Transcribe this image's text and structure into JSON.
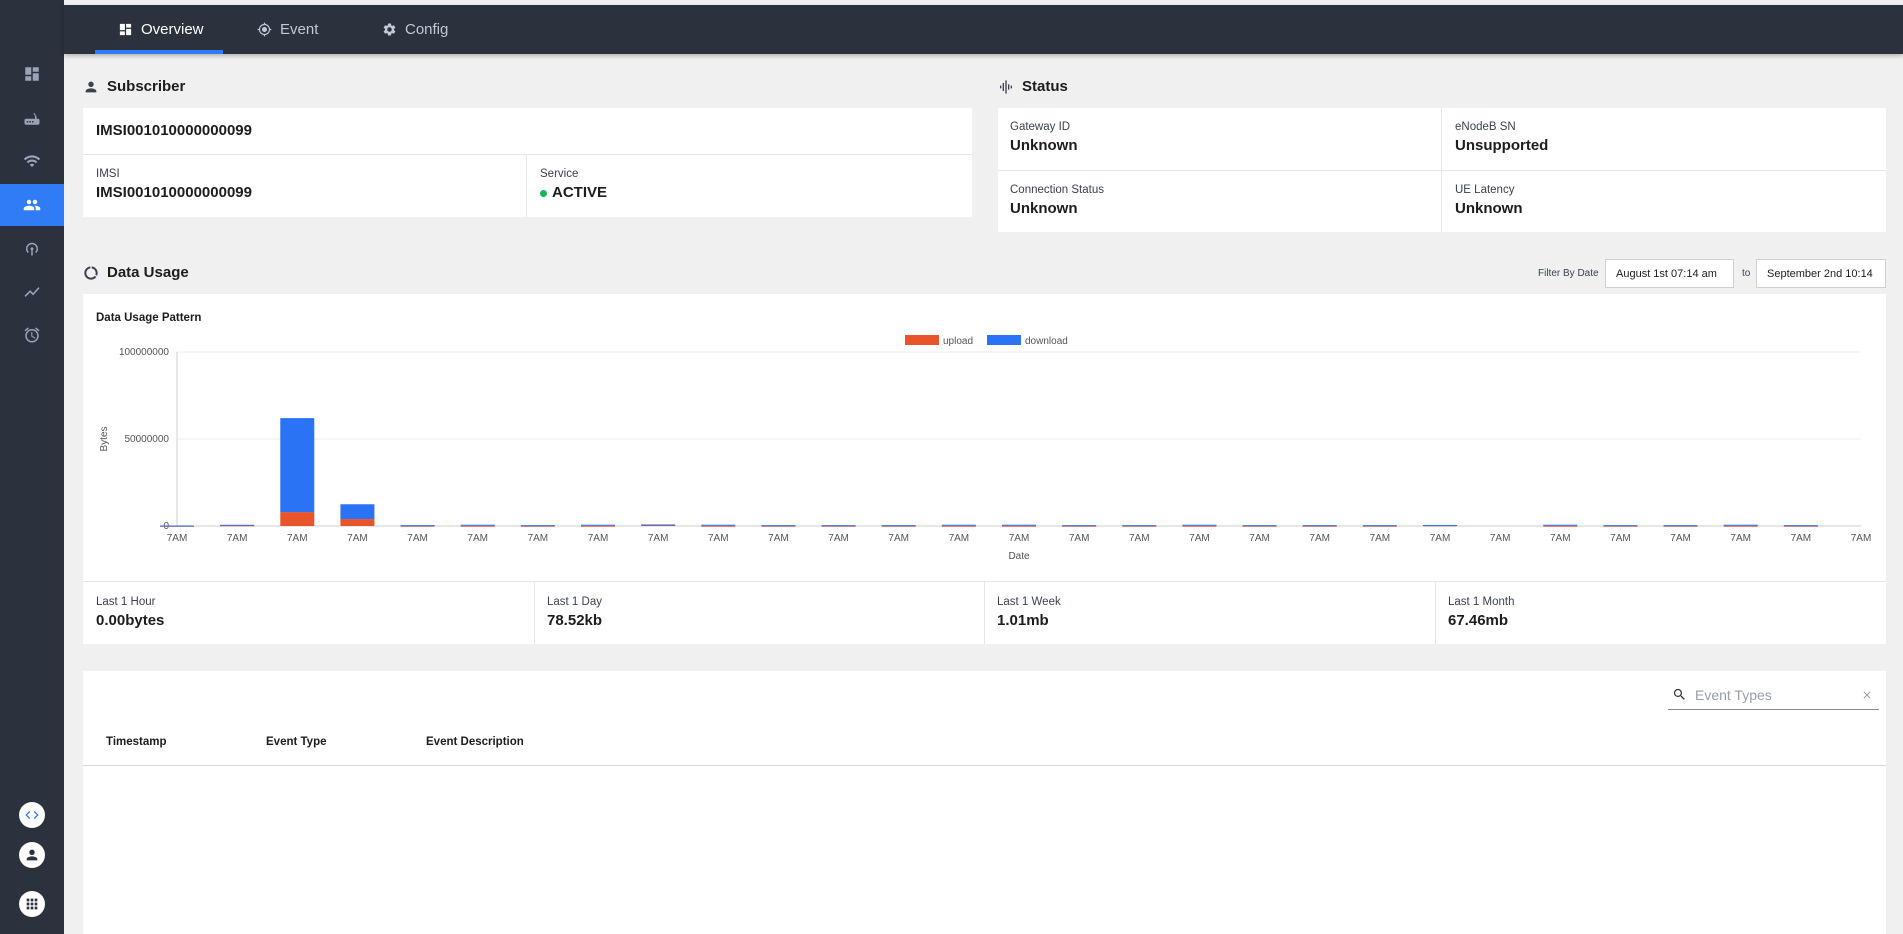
{
  "tabs": [
    {
      "label": "Overview",
      "icon": "dashboard-icon",
      "active": true
    },
    {
      "label": "Event",
      "icon": "gps-target-icon",
      "active": false
    },
    {
      "label": "Config",
      "icon": "gear-icon",
      "active": false
    }
  ],
  "subscriber": {
    "heading": "Subscriber",
    "id": "IMSI001010000000099",
    "imsi_label": "IMSI",
    "imsi_value": "IMSI001010000000099",
    "service_label": "Service",
    "service_value": "ACTIVE",
    "service_color": "#1cb45a"
  },
  "status": {
    "heading": "Status",
    "fields": [
      {
        "label": "Gateway ID",
        "value": "Unknown"
      },
      {
        "label": "eNodeB SN",
        "value": "Unsupported"
      },
      {
        "label": "Connection Status",
        "value": "Unknown"
      },
      {
        "label": "UE Latency",
        "value": "Unknown"
      }
    ]
  },
  "data_usage": {
    "heading": "Data Usage",
    "filter_label": "Filter By Date",
    "from_date": "August 1st 07:14 am",
    "to_label": "to",
    "to_date": "September 2nd 10:14"
  },
  "kpis": [
    {
      "label": "Last 1 Hour",
      "value": "0.00bytes"
    },
    {
      "label": "Last 1 Day",
      "value": "78.52kb"
    },
    {
      "label": "Last 1 Week",
      "value": "1.01mb"
    },
    {
      "label": "Last 1 Month",
      "value": "67.46mb"
    }
  ],
  "events": {
    "search_placeholder": "Event Types",
    "columns": [
      "Timestamp",
      "Event Type",
      "Event Description"
    ]
  },
  "colors": {
    "accent": "#2f7cf6",
    "nav_bg": "#2b313d",
    "upload": "#e8552b",
    "download": "#2a73f5"
  },
  "chart_data": {
    "type": "bar",
    "stacked": true,
    "title": "Data Usage Pattern",
    "xlabel": "Date",
    "ylabel": "Bytes",
    "ylim": [
      0,
      100000000
    ],
    "yticks": [
      0,
      50000000,
      100000000
    ],
    "legend_position": "top-center",
    "grid": true,
    "categories": [
      "7AM",
      "7AM",
      "7AM",
      "7AM",
      "7AM",
      "7AM",
      "7AM",
      "7AM",
      "7AM",
      "7AM",
      "7AM",
      "7AM",
      "7AM",
      "7AM",
      "7AM",
      "7AM",
      "7AM",
      "7AM",
      "7AM",
      "7AM",
      "7AM",
      "7AM",
      "7AM",
      "7AM",
      "7AM",
      "7AM",
      "7AM",
      "7AM",
      "7AM"
    ],
    "series": [
      {
        "name": "upload",
        "color": "#e8552b",
        "values": [
          100000,
          400000,
          8000000,
          4000000,
          150000,
          150000,
          150000,
          150000,
          600000,
          150000,
          150000,
          150000,
          150000,
          150000,
          150000,
          150000,
          150000,
          150000,
          150000,
          150000,
          150000,
          400000,
          0,
          150000,
          150000,
          150000,
          150000,
          150000,
          0
        ]
      },
      {
        "name": "download",
        "color": "#2a73f5",
        "values": [
          200000,
          300000,
          54000000,
          8500000,
          350000,
          600000,
          350000,
          600000,
          300000,
          600000,
          350000,
          350000,
          350000,
          600000,
          600000,
          350000,
          350000,
          600000,
          350000,
          350000,
          350000,
          200000,
          0,
          600000,
          350000,
          350000,
          600000,
          350000,
          0
        ]
      }
    ]
  }
}
